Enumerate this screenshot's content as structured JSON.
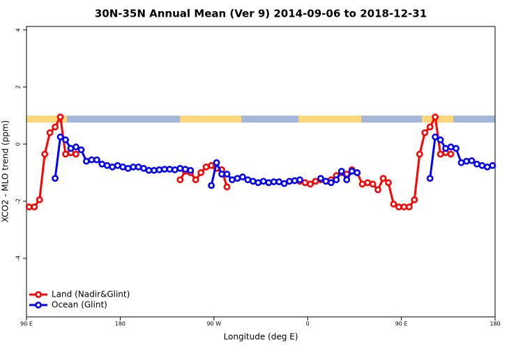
{
  "chart_data": {
    "type": "line",
    "title": "30N-35N Annual Mean (Ver 9)   2014-09-06 to 2018-12-31",
    "x_label": "Longitude (deg E)",
    "y_label": "XCO2 - MLO trend (ppm)",
    "xlim": [
      90,
      540
    ],
    "ylim": [
      -6.05,
      4.12
    ],
    "xticks": [
      {
        "value": 90,
        "label": "90 E"
      },
      180,
      {
        "value": 270,
        "label": "90 W"
      },
      {
        "value": 360,
        "label": "0"
      },
      {
        "value": 450,
        "label": "90 E"
      },
      {
        "value": 540,
        "label": "180"
      }
    ],
    "yticks": [
      4,
      2,
      0,
      -2,
      -4
    ],
    "legend": "bottom-left",
    "x": [
      92.5,
      97.5,
      102.5,
      107.5,
      112.5,
      117.5,
      122.5,
      127.5,
      132.5,
      137.5,
      142.5,
      147.5,
      152.5,
      157.5,
      162.5,
      167.5,
      172.5,
      177.5,
      182.5,
      187.5,
      192.5,
      197.5,
      202.5,
      207.5,
      212.5,
      217.5,
      222.5,
      227.5,
      232.5,
      237.5,
      242.5,
      247.5,
      252.5,
      257.5,
      262.5,
      267.5,
      272.5,
      277.5,
      282.5,
      287.5,
      292.5,
      297.5,
      302.5,
      307.5,
      312.5,
      317.5,
      322.5,
      327.5,
      332.5,
      337.5,
      342.5,
      347.5,
      352.5,
      357.5,
      362.5,
      367.5,
      372.5,
      377.5,
      382.5,
      387.5,
      392.5,
      397.5,
      402.5,
      407.5,
      412.5,
      417.5,
      422.5,
      427.5,
      432.5,
      437.5,
      442.5,
      447.5,
      452.5,
      457.5,
      462.5,
      467.5,
      472.5,
      477.5,
      482.5,
      487.5,
      492.5,
      497.5,
      502.5,
      507.5,
      512.5,
      517.5,
      522.5,
      527.5,
      532.5,
      537.5
    ],
    "series": [
      {
        "name": "Land (Nadir&Glint)",
        "color": "#ff0000",
        "values": [
          -2.2,
          -2.2,
          -1.95,
          -0.35,
          0.4,
          0.6,
          0.95,
          -0.35,
          -0.3,
          -0.35,
          null,
          null,
          null,
          null,
          null,
          null,
          null,
          null,
          null,
          null,
          null,
          null,
          null,
          null,
          null,
          null,
          null,
          null,
          null,
          -1.25,
          -0.95,
          -1.0,
          -1.25,
          -1.0,
          -0.8,
          -0.75,
          -0.85,
          -0.9,
          -1.5,
          null,
          null,
          null,
          null,
          null,
          null,
          null,
          null,
          null,
          null,
          null,
          null,
          null,
          -1.3,
          -1.35,
          -1.4,
          -1.3,
          -1.25,
          -1.3,
          -1.25,
          -1.1,
          -1.0,
          -1.05,
          -0.9,
          -1.0,
          -1.4,
          -1.35,
          -1.4,
          -1.6,
          -1.2,
          -1.35,
          -2.1,
          -2.2,
          -2.2,
          -2.2,
          -1.95,
          -0.35,
          0.4,
          0.6,
          0.95,
          -0.35,
          -0.3,
          -0.35,
          null,
          null,
          null,
          null,
          null,
          null,
          null,
          null
        ]
      },
      {
        "name": "Ocean (Glint)",
        "color": "#0000ff",
        "values": [
          null,
          null,
          null,
          null,
          null,
          -1.2,
          0.25,
          0.15,
          -0.15,
          -0.1,
          -0.2,
          -0.6,
          -0.55,
          -0.55,
          -0.7,
          -0.75,
          -0.8,
          -0.75,
          -0.8,
          -0.85,
          -0.8,
          -0.8,
          -0.85,
          -0.92,
          -0.92,
          -0.9,
          -0.88,
          -0.88,
          -0.9,
          -0.85,
          -0.88,
          -0.92,
          null,
          null,
          null,
          -1.45,
          -0.65,
          -1.05,
          -1.05,
          -1.25,
          -1.2,
          -1.15,
          -1.25,
          -1.3,
          -1.35,
          -1.3,
          -1.35,
          -1.32,
          -1.32,
          -1.38,
          -1.3,
          -1.28,
          -1.25,
          null,
          null,
          null,
          -1.2,
          -1.3,
          -1.35,
          -1.25,
          -0.95,
          -1.25,
          -0.95,
          -1.0,
          null,
          null,
          null,
          null,
          null,
          null,
          null,
          null,
          null,
          null,
          null,
          null,
          null,
          -1.2,
          0.25,
          0.15,
          -0.15,
          -0.1,
          -0.15,
          -0.65,
          -0.6,
          -0.58,
          -0.7,
          -0.75,
          -0.8,
          -0.75
        ]
      }
    ]
  }
}
